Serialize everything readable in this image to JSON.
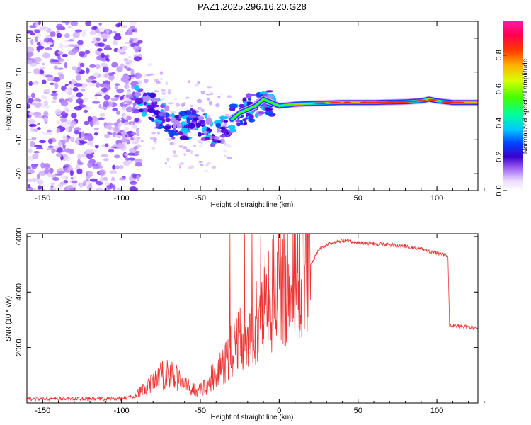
{
  "title": "PAZ1.2025.296.16.20.G28",
  "chart_data": [
    {
      "type": "heatmap",
      "xlabel": "Height of straight line (km)",
      "ylabel": "Frequency (Hz)",
      "xlim": [
        -160,
        126
      ],
      "ylim": [
        -25,
        25
      ],
      "xticks": [
        -150,
        -100,
        -50,
        0,
        50,
        100
      ],
      "yticks": [
        -20,
        -10,
        0,
        10,
        20
      ],
      "ridge": {
        "x": [
          -92,
          -85,
          -80,
          -75,
          -70,
          -65,
          -60,
          -55,
          -50,
          -45,
          -40,
          -35,
          -30,
          -25,
          -20,
          -15,
          -10,
          -5,
          0,
          10,
          20,
          40,
          60,
          80,
          90,
          95,
          100,
          110,
          126
        ],
        "y": [
          2,
          1,
          -1,
          -3,
          -5,
          -6,
          -6,
          -5,
          -5,
          -7,
          -9,
          -6,
          -4,
          -2,
          -1,
          0,
          2,
          1,
          0,
          0.5,
          0.7,
          1,
          1,
          1.2,
          1.5,
          2,
          1.5,
          1,
          1
        ]
      },
      "colorbar": {
        "label": "Normalized spectral amplitude",
        "ticks": [
          "0.0",
          "0.2",
          "0.4",
          "0.6",
          "0.8"
        ],
        "range": [
          0,
          1
        ]
      }
    },
    {
      "type": "line",
      "xlabel": "Height of straight line (km)",
      "ylabel": "SNR (10 * v/v)",
      "xlim": [
        -160,
        126
      ],
      "ylim": [
        0,
        6100
      ],
      "xticks": [
        -150,
        -100,
        -50,
        0,
        50,
        100
      ],
      "yticks": [
        2000,
        4000,
        6000
      ],
      "color": "#ee3333",
      "envelope": {
        "x": [
          -160,
          -100,
          -92,
          -85,
          -80,
          -75,
          -70,
          -65,
          -60,
          -55,
          -50,
          -45,
          -40,
          -35,
          -30,
          -25,
          -20,
          -15,
          -10,
          -5,
          0,
          5,
          10,
          15,
          20,
          25,
          30,
          40,
          50,
          60,
          70,
          80,
          90,
          100,
          107,
          108,
          126
        ],
        "y": [
          150,
          150,
          250,
          450,
          650,
          900,
          950,
          800,
          600,
          450,
          400,
          650,
          1000,
          1200,
          1800,
          2000,
          2200,
          2600,
          3000,
          3400,
          3800,
          4000,
          4200,
          4500,
          5000,
          5500,
          5700,
          5850,
          5780,
          5750,
          5700,
          5650,
          5550,
          5400,
          5300,
          2800,
          2700
        ]
      }
    }
  ]
}
